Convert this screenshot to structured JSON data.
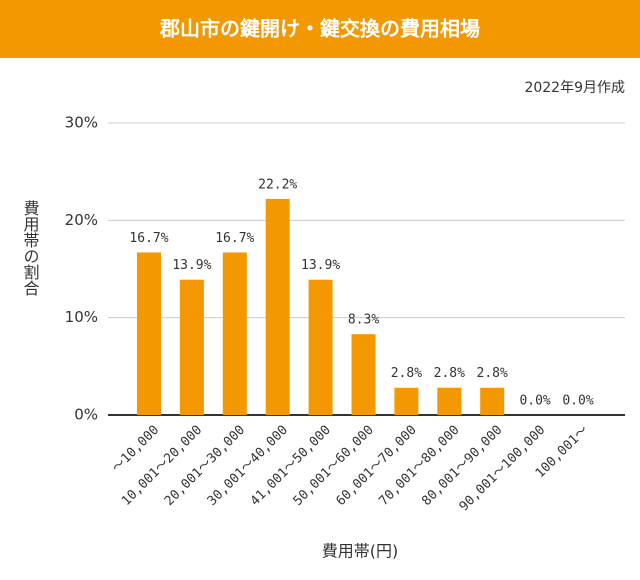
{
  "chart_data": {
    "type": "bar",
    "title": "郡山市の鍵開け・鍵交換の費用相場",
    "subtitle": "2022年9月作成",
    "y_label": "費用帯の割合",
    "x_label": "費用帯(円)",
    "categories": [
      "〜10,000",
      "10,001〜20,000",
      "20,001〜30,000",
      "30,001〜40,000",
      "41,001〜50,000",
      "50,001〜60,000",
      "60,001〜70,000",
      "70,001〜80,000",
      "80,001〜90,000",
      "90,001〜100,000",
      "100,001〜"
    ],
    "values": [
      16.7,
      13.9,
      16.7,
      22.2,
      13.9,
      8.3,
      2.8,
      2.8,
      2.8,
      0.0,
      0.0
    ],
    "value_labels": [
      "16.7%",
      "13.9%",
      "16.7%",
      "22.2%",
      "13.9%",
      "8.3%",
      "2.8%",
      "2.8%",
      "2.8%",
      "0.0%",
      "0.0%"
    ],
    "color": "#f39800",
    "ylim": [
      0,
      30
    ],
    "yticks": [
      {
        "value": 0,
        "label": "0%"
      },
      {
        "value": 10,
        "label": "10%"
      },
      {
        "value": 20,
        "label": "20%"
      },
      {
        "value": 30,
        "label": "30%"
      }
    ],
    "grid": true
  }
}
